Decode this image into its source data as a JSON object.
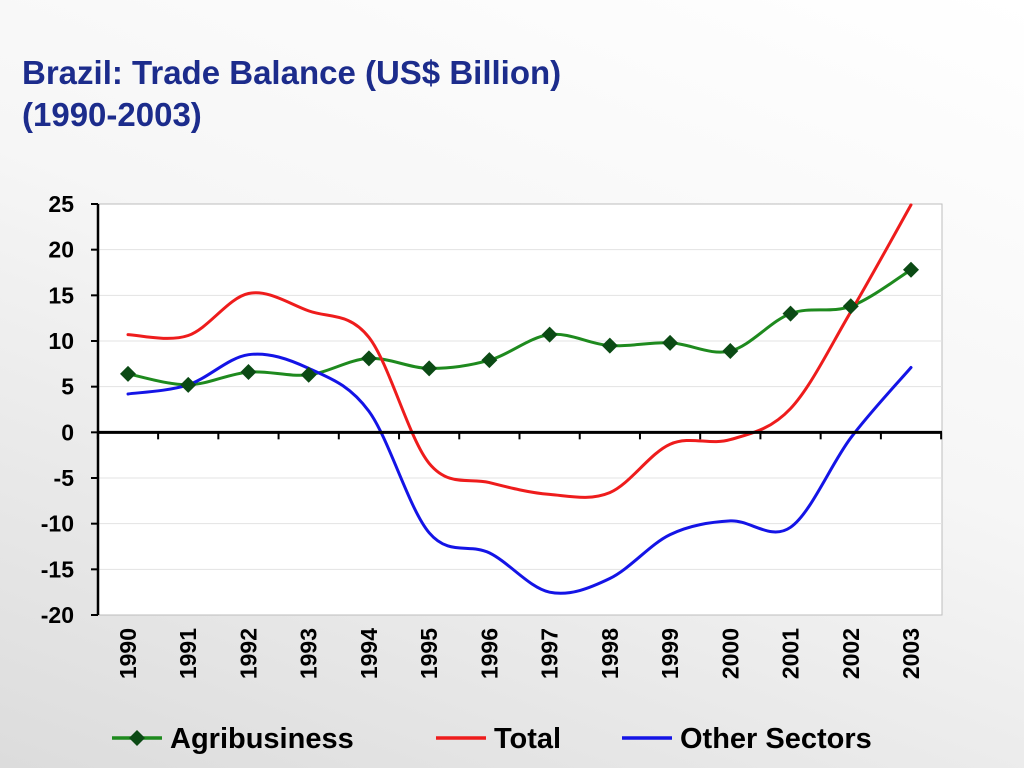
{
  "title": {
    "line1": "Brazil: Trade Balance (US$ Billion)",
    "line2": "(1990-2003)"
  },
  "chart_data": {
    "type": "line",
    "title": "Brazil: Trade Balance (US$ Billion) (1990-2003)",
    "x": [
      "1990",
      "1991",
      "1992",
      "1993",
      "1994",
      "1995",
      "1996",
      "1997",
      "1998",
      "1999",
      "2000",
      "2001",
      "2002",
      "2003"
    ],
    "ylim": [
      -20,
      25
    ],
    "yticks": [
      25,
      20,
      15,
      10,
      5,
      0,
      -5,
      -10,
      -15,
      -20
    ],
    "grid": true,
    "legend_position": "bottom",
    "series": [
      {
        "name": "Agribusiness",
        "color": "#1e8a1e",
        "marker": "diamond",
        "marker_color": "#0b4a14",
        "values": [
          6.4,
          5.2,
          6.6,
          6.3,
          8.1,
          7.0,
          7.9,
          10.7,
          9.5,
          9.8,
          8.9,
          13.0,
          13.8,
          17.8
        ]
      },
      {
        "name": "Total",
        "color": "#ee1c1c",
        "values": [
          10.7,
          10.6,
          15.2,
          13.3,
          10.4,
          -3.4,
          -5.5,
          -6.8,
          -6.6,
          -1.3,
          -0.8,
          2.6,
          13.2,
          24.9
        ]
      },
      {
        "name": "Other Sectors",
        "color": "#1414e6",
        "values": [
          4.2,
          5.2,
          8.5,
          7.0,
          2.3,
          -11.0,
          -13.2,
          -17.5,
          -16.0,
          -11.2,
          -9.7,
          -10.4,
          -0.6,
          7.1
        ]
      }
    ]
  }
}
